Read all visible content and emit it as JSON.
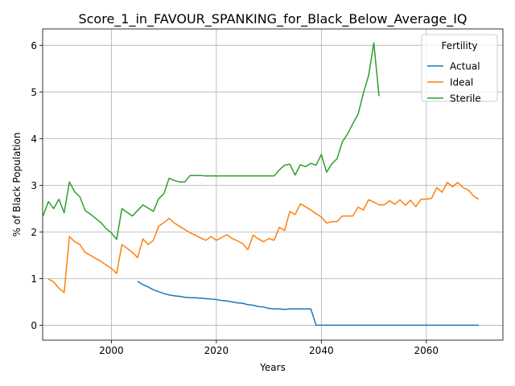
{
  "chart_data": {
    "type": "line",
    "title": "Score_1_in_FAVOUR_SPANKING_for_Black_Below_Average_IQ",
    "xlabel": "Years",
    "ylabel": "% of Black Population",
    "xlim": [
      1986.9,
      2074.6
    ],
    "ylim": [
      -0.32,
      6.35
    ],
    "xticks": [
      2000,
      2020,
      2040,
      2060
    ],
    "yticks": [
      0,
      1,
      2,
      3,
      4,
      5,
      6
    ],
    "grid": true,
    "legend": {
      "title": "Fertility",
      "location": "upper right"
    },
    "series": [
      {
        "name": "Actual",
        "color": "#1f77b4",
        "points": [
          [
            2005,
            0.94
          ],
          [
            2006,
            0.87
          ],
          [
            2007,
            0.82
          ],
          [
            2008,
            0.76
          ],
          [
            2009,
            0.72
          ],
          [
            2010,
            0.68
          ],
          [
            2011,
            0.65
          ],
          [
            2012,
            0.63
          ],
          [
            2013,
            0.62
          ],
          [
            2014,
            0.6
          ],
          [
            2015,
            0.59
          ],
          [
            2016,
            0.59
          ],
          [
            2017,
            0.58
          ],
          [
            2018,
            0.57
          ],
          [
            2019,
            0.56
          ],
          [
            2020,
            0.55
          ],
          [
            2021,
            0.53
          ],
          [
            2022,
            0.52
          ],
          [
            2023,
            0.5
          ],
          [
            2024,
            0.48
          ],
          [
            2025,
            0.47
          ],
          [
            2026,
            0.44
          ],
          [
            2027,
            0.43
          ],
          [
            2028,
            0.4
          ],
          [
            2029,
            0.39
          ],
          [
            2030,
            0.36
          ],
          [
            2031,
            0.35
          ],
          [
            2032,
            0.35
          ],
          [
            2033,
            0.34
          ],
          [
            2034,
            0.35
          ],
          [
            2035,
            0.35
          ],
          [
            2036,
            0.35
          ],
          [
            2037,
            0.35
          ],
          [
            2038,
            0.35
          ],
          [
            2039,
            0.0
          ],
          [
            2040,
            0.0
          ],
          [
            2045,
            0.0
          ],
          [
            2050,
            0.0
          ],
          [
            2055,
            0.0
          ],
          [
            2060,
            0.0
          ],
          [
            2065,
            0.0
          ],
          [
            2070,
            0.0
          ]
        ]
      },
      {
        "name": "Ideal",
        "color": "#ff7f0e",
        "points": [
          [
            1988,
            0.99
          ],
          [
            1989,
            0.93
          ],
          [
            1990,
            0.79
          ],
          [
            1991,
            0.7
          ],
          [
            1992,
            1.9
          ],
          [
            1993,
            1.79
          ],
          [
            1994,
            1.73
          ],
          [
            1995,
            1.56
          ],
          [
            1996,
            1.5
          ],
          [
            1997,
            1.43
          ],
          [
            1998,
            1.37
          ],
          [
            1999,
            1.29
          ],
          [
            2000,
            1.22
          ],
          [
            2001,
            1.11
          ],
          [
            2002,
            1.73
          ],
          [
            2003,
            1.65
          ],
          [
            2004,
            1.56
          ],
          [
            2005,
            1.45
          ],
          [
            2006,
            1.85
          ],
          [
            2007,
            1.73
          ],
          [
            2008,
            1.82
          ],
          [
            2009,
            2.12
          ],
          [
            2010,
            2.2
          ],
          [
            2011,
            2.29
          ],
          [
            2012,
            2.19
          ],
          [
            2013,
            2.12
          ],
          [
            2014,
            2.05
          ],
          [
            2015,
            1.98
          ],
          [
            2016,
            1.93
          ],
          [
            2017,
            1.87
          ],
          [
            2018,
            1.82
          ],
          [
            2019,
            1.9
          ],
          [
            2020,
            1.82
          ],
          [
            2021,
            1.88
          ],
          [
            2022,
            1.94
          ],
          [
            2023,
            1.86
          ],
          [
            2024,
            1.81
          ],
          [
            2025,
            1.75
          ],
          [
            2026,
            1.62
          ],
          [
            2027,
            1.93
          ],
          [
            2028,
            1.85
          ],
          [
            2029,
            1.79
          ],
          [
            2030,
            1.86
          ],
          [
            2031,
            1.82
          ],
          [
            2032,
            2.1
          ],
          [
            2033,
            2.03
          ],
          [
            2034,
            2.44
          ],
          [
            2035,
            2.37
          ],
          [
            2036,
            2.6
          ],
          [
            2037,
            2.54
          ],
          [
            2038,
            2.47
          ],
          [
            2039,
            2.39
          ],
          [
            2040,
            2.32
          ],
          [
            2041,
            2.19
          ],
          [
            2042,
            2.22
          ],
          [
            2043,
            2.22
          ],
          [
            2044,
            2.34
          ],
          [
            2045,
            2.34
          ],
          [
            2046,
            2.34
          ],
          [
            2047,
            2.53
          ],
          [
            2048,
            2.47
          ],
          [
            2049,
            2.69
          ],
          [
            2050,
            2.64
          ],
          [
            2051,
            2.58
          ],
          [
            2052,
            2.58
          ],
          [
            2053,
            2.67
          ],
          [
            2054,
            2.59
          ],
          [
            2055,
            2.69
          ],
          [
            2056,
            2.57
          ],
          [
            2057,
            2.68
          ],
          [
            2058,
            2.54
          ],
          [
            2059,
            2.7
          ],
          [
            2060,
            2.7
          ],
          [
            2061,
            2.72
          ],
          [
            2062,
            2.95
          ],
          [
            2063,
            2.85
          ],
          [
            2064,
            3.06
          ],
          [
            2065,
            2.97
          ],
          [
            2066,
            3.06
          ],
          [
            2067,
            2.95
          ],
          [
            2068,
            2.9
          ],
          [
            2069,
            2.77
          ],
          [
            2070,
            2.7
          ]
        ]
      },
      {
        "name": "Sterile",
        "color": "#2ca02c",
        "points": [
          [
            1987,
            2.35
          ],
          [
            1988,
            2.65
          ],
          [
            1989,
            2.5
          ],
          [
            1990,
            2.7
          ],
          [
            1991,
            2.41
          ],
          [
            1992,
            3.07
          ],
          [
            1993,
            2.86
          ],
          [
            1994,
            2.75
          ],
          [
            1995,
            2.46
          ],
          [
            1996,
            2.38
          ],
          [
            1997,
            2.29
          ],
          [
            1998,
            2.2
          ],
          [
            1999,
            2.07
          ],
          [
            2000,
            1.98
          ],
          [
            2001,
            1.84
          ],
          [
            2002,
            2.5
          ],
          [
            2003,
            2.42
          ],
          [
            2004,
            2.34
          ],
          [
            2005,
            2.46
          ],
          [
            2006,
            2.58
          ],
          [
            2007,
            2.51
          ],
          [
            2008,
            2.44
          ],
          [
            2009,
            2.71
          ],
          [
            2010,
            2.82
          ],
          [
            2011,
            3.15
          ],
          [
            2012,
            3.1
          ],
          [
            2013,
            3.07
          ],
          [
            2014,
            3.07
          ],
          [
            2015,
            3.21
          ],
          [
            2016,
            3.21
          ],
          [
            2017,
            3.21
          ],
          [
            2018,
            3.2
          ],
          [
            2019,
            3.2
          ],
          [
            2020,
            3.2
          ],
          [
            2025,
            3.2
          ],
          [
            2030,
            3.2
          ],
          [
            2031,
            3.2
          ],
          [
            2032,
            3.33
          ],
          [
            2033,
            3.43
          ],
          [
            2034,
            3.45
          ],
          [
            2035,
            3.22
          ],
          [
            2036,
            3.44
          ],
          [
            2037,
            3.4
          ],
          [
            2038,
            3.47
          ],
          [
            2039,
            3.43
          ],
          [
            2040,
            3.66
          ],
          [
            2041,
            3.28
          ],
          [
            2042,
            3.46
          ],
          [
            2043,
            3.57
          ],
          [
            2044,
            3.93
          ],
          [
            2045,
            4.1
          ],
          [
            2046,
            4.32
          ],
          [
            2047,
            4.52
          ],
          [
            2048,
            4.97
          ],
          [
            2049,
            5.35
          ],
          [
            2050,
            6.05
          ],
          [
            2051,
            4.91
          ]
        ]
      }
    ]
  }
}
